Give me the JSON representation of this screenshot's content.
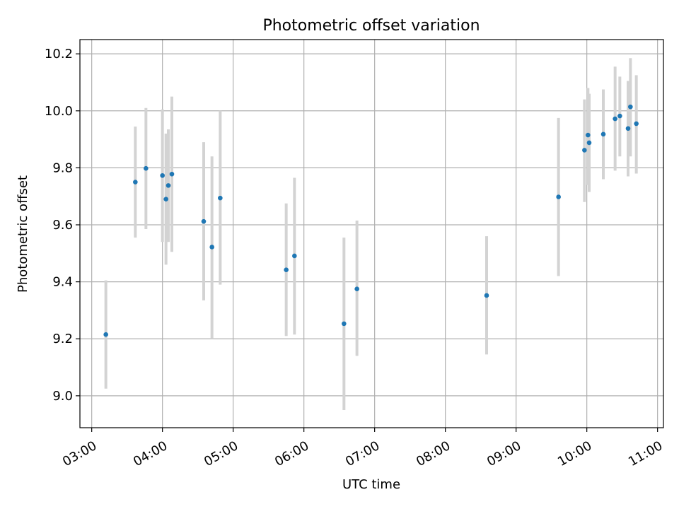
{
  "chart_data": {
    "type": "scatter",
    "title": "Photometric offset variation",
    "xlabel": "UTC time",
    "ylabel": "Photometric offset",
    "x_ticks": [
      "03:00",
      "04:00",
      "05:00",
      "06:00",
      "07:00",
      "08:00",
      "09:00",
      "10:00",
      "11:00"
    ],
    "y_ticks": [
      "9.0",
      "9.2",
      "9.4",
      "9.6",
      "9.8",
      "10.0",
      "10.2"
    ],
    "xlim": [
      "02:50",
      "11:05"
    ],
    "ylim": [
      8.888,
      10.25
    ],
    "grid": true,
    "colors": {
      "point": "#1f77b4",
      "errorbar": "#d3d3d3",
      "grid": "#b0b0b0"
    },
    "points": [
      {
        "x": "03:12",
        "y": 9.215,
        "ylow": 9.025,
        "yhigh": 9.405
      },
      {
        "x": "03:37",
        "y": 9.75,
        "ylow": 9.555,
        "yhigh": 9.945
      },
      {
        "x": "03:46",
        "y": 9.798,
        "ylow": 9.585,
        "yhigh": 10.01
      },
      {
        "x": "04:00",
        "y": 9.773,
        "ylow": 9.54,
        "yhigh": 10.005
      },
      {
        "x": "04:03",
        "y": 9.69,
        "ylow": 9.46,
        "yhigh": 9.92
      },
      {
        "x": "04:05",
        "y": 9.738,
        "ylow": 9.54,
        "yhigh": 9.935
      },
      {
        "x": "04:08",
        "y": 9.778,
        "ylow": 9.505,
        "yhigh": 10.05
      },
      {
        "x": "04:35",
        "y": 9.612,
        "ylow": 9.335,
        "yhigh": 9.89
      },
      {
        "x": "04:42",
        "y": 9.522,
        "ylow": 9.2,
        "yhigh": 9.84
      },
      {
        "x": "04:49",
        "y": 9.694,
        "ylow": 9.39,
        "yhigh": 10.0
      },
      {
        "x": "05:45",
        "y": 9.442,
        "ylow": 9.21,
        "yhigh": 9.675
      },
      {
        "x": "05:52",
        "y": 9.491,
        "ylow": 9.215,
        "yhigh": 9.765
      },
      {
        "x": "06:34",
        "y": 9.253,
        "ylow": 8.95,
        "yhigh": 9.555
      },
      {
        "x": "06:45",
        "y": 9.375,
        "ylow": 9.14,
        "yhigh": 9.615
      },
      {
        "x": "08:35",
        "y": 9.352,
        "ylow": 9.145,
        "yhigh": 9.56
      },
      {
        "x": "09:36",
        "y": 9.698,
        "ylow": 9.42,
        "yhigh": 9.975
      },
      {
        "x": "09:58",
        "y": 9.862,
        "ylow": 9.68,
        "yhigh": 10.04
      },
      {
        "x": "10:01",
        "y": 9.915,
        "ylow": 9.74,
        "yhigh": 10.08
      },
      {
        "x": "10:02",
        "y": 9.888,
        "ylow": 9.715,
        "yhigh": 10.06
      },
      {
        "x": "10:14",
        "y": 9.918,
        "ylow": 9.76,
        "yhigh": 10.075
      },
      {
        "x": "10:24",
        "y": 9.972,
        "ylow": 9.79,
        "yhigh": 10.155
      },
      {
        "x": "10:28",
        "y": 9.982,
        "ylow": 9.84,
        "yhigh": 10.12
      },
      {
        "x": "10:35",
        "y": 9.938,
        "ylow": 9.77,
        "yhigh": 10.105
      },
      {
        "x": "10:37",
        "y": 10.014,
        "ylow": 9.84,
        "yhigh": 10.185
      },
      {
        "x": "10:42",
        "y": 9.955,
        "ylow": 9.78,
        "yhigh": 10.125
      }
    ]
  }
}
